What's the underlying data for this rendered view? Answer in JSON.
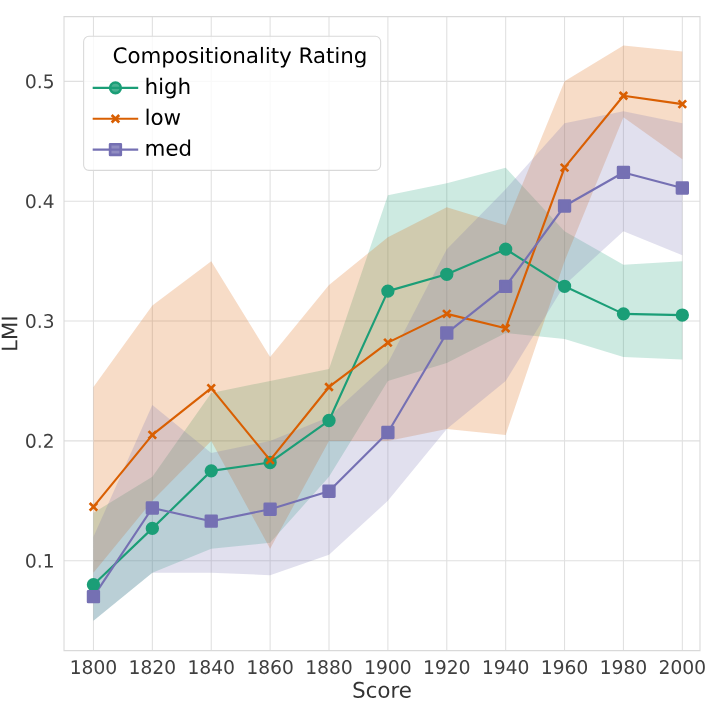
{
  "chart_data": {
    "type": "line",
    "xlabel": "Score",
    "ylabel": "LMI",
    "legend_title": "Compositionality Rating",
    "x": [
      1800,
      1820,
      1840,
      1860,
      1880,
      1900,
      1920,
      1940,
      1960,
      1980,
      2000
    ],
    "xlim": [
      1790,
      2006
    ],
    "ylim": [
      0.025,
      0.554
    ],
    "xticks": [
      1800,
      1820,
      1840,
      1860,
      1880,
      1900,
      1920,
      1940,
      1960,
      1980,
      2000
    ],
    "yticks": [
      0.1,
      0.2,
      0.3,
      0.4,
      0.5
    ],
    "grid": true,
    "legend": "top left",
    "series": [
      {
        "name": "high",
        "color": "#1b9e77",
        "marker": "circle",
        "values": [
          0.08,
          0.127,
          0.175,
          0.182,
          0.217,
          0.325,
          0.339,
          0.36,
          0.329,
          0.306,
          0.305
        ],
        "lower": [
          0.05,
          0.09,
          0.11,
          0.115,
          0.17,
          0.25,
          0.265,
          0.29,
          0.285,
          0.27,
          0.268
        ],
        "upper": [
          0.14,
          0.17,
          0.24,
          0.25,
          0.26,
          0.405,
          0.415,
          0.428,
          0.375,
          0.347,
          0.35
        ]
      },
      {
        "name": "low",
        "color": "#d95f02",
        "marker": "cross",
        "values": [
          0.145,
          0.205,
          0.244,
          0.184,
          0.245,
          0.282,
          0.306,
          0.294,
          0.428,
          0.488,
          0.481
        ],
        "lower": [
          0.09,
          0.15,
          0.2,
          0.11,
          0.2,
          0.2,
          0.21,
          0.205,
          0.35,
          0.47,
          0.435
        ],
        "upper": [
          0.245,
          0.313,
          0.35,
          0.27,
          0.33,
          0.37,
          0.395,
          0.38,
          0.5,
          0.53,
          0.525
        ]
      },
      {
        "name": "med",
        "color": "#7570b3",
        "marker": "square",
        "values": [
          0.07,
          0.144,
          0.133,
          0.143,
          0.158,
          0.207,
          0.29,
          0.329,
          0.396,
          0.424,
          0.411
        ],
        "lower": [
          0.05,
          0.09,
          0.09,
          0.088,
          0.105,
          0.15,
          0.21,
          0.25,
          0.33,
          0.375,
          0.355
        ],
        "upper": [
          0.12,
          0.23,
          0.19,
          0.2,
          0.22,
          0.265,
          0.36,
          0.41,
          0.465,
          0.475,
          0.465
        ]
      }
    ]
  }
}
